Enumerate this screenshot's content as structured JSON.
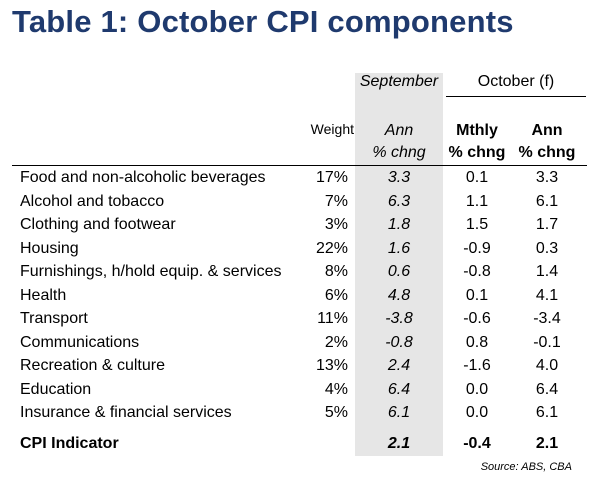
{
  "title": "Table 1: October CPI components",
  "headers": {
    "september": "September",
    "october": "October (f)",
    "weight": "Weight",
    "ann_sep_line1": "Ann",
    "ann_sep_line2": "% chng",
    "mthly_line1": "Mthly",
    "mthly_line2": "% chng",
    "ann_oct_line1": "Ann",
    "ann_oct_line2": "% chng"
  },
  "rows": [
    {
      "name": "Food and non-alcoholic beverages",
      "weight": "17%",
      "sep_ann": "3.3",
      "oct_mthly": "0.1",
      "oct_ann": "3.3"
    },
    {
      "name": "Alcohol and tobacco",
      "weight": "7%",
      "sep_ann": "6.3",
      "oct_mthly": "1.1",
      "oct_ann": "6.1"
    },
    {
      "name": "Clothing and footwear",
      "weight": "3%",
      "sep_ann": "1.8",
      "oct_mthly": "1.5",
      "oct_ann": "1.7"
    },
    {
      "name": "Housing",
      "weight": "22%",
      "sep_ann": "1.6",
      "oct_mthly": "-0.9",
      "oct_ann": "0.3"
    },
    {
      "name": "Furnishings, h/hold equip. & services",
      "weight": "8%",
      "sep_ann": "0.6",
      "oct_mthly": "-0.8",
      "oct_ann": "1.4"
    },
    {
      "name": "Health",
      "weight": "6%",
      "sep_ann": "4.8",
      "oct_mthly": "0.1",
      "oct_ann": "4.1"
    },
    {
      "name": "Transport",
      "weight": "11%",
      "sep_ann": "-3.8",
      "oct_mthly": "-0.6",
      "oct_ann": "-3.4"
    },
    {
      "name": "Communications",
      "weight": "2%",
      "sep_ann": "-0.8",
      "oct_mthly": "0.8",
      "oct_ann": "-0.1"
    },
    {
      "name": "Recreation & culture",
      "weight": "13%",
      "sep_ann": "2.4",
      "oct_mthly": "-1.6",
      "oct_ann": "4.0"
    },
    {
      "name": "Education",
      "weight": "4%",
      "sep_ann": "6.4",
      "oct_mthly": "0.0",
      "oct_ann": "6.4"
    },
    {
      "name": "Insurance & financial services",
      "weight": "5%",
      "sep_ann": "6.1",
      "oct_mthly": "0.0",
      "oct_ann": "6.1"
    }
  ],
  "total": {
    "name": "CPI Indicator",
    "sep_ann": "2.1",
    "oct_mthly": "-0.4",
    "oct_ann": "2.1"
  },
  "source": "Source: ABS, CBA",
  "colors": {
    "title": "#1f3a6e",
    "shade": "#e6e6e6"
  }
}
